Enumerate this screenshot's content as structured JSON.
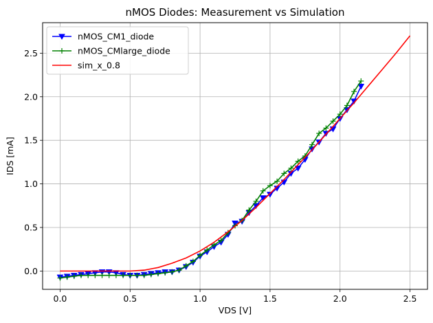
{
  "chart_data": {
    "type": "line",
    "title": "nMOS Diodes: Measurement vs Simulation",
    "xlabel": "VDS [V]",
    "ylabel": "IDS [mA]",
    "xlim": [
      -0.125,
      2.625
    ],
    "ylim": [
      -0.21,
      2.85
    ],
    "xticks": [
      0.0,
      0.5,
      1.0,
      1.5,
      2.0,
      2.5
    ],
    "xtick_labels": [
      "0.0",
      "0.5",
      "1.0",
      "1.5",
      "2.0",
      "2.5"
    ],
    "yticks": [
      0.0,
      0.5,
      1.0,
      1.5,
      2.0,
      2.5
    ],
    "ytick_labels": [
      "0.0",
      "0.5",
      "1.0",
      "1.5",
      "2.0",
      "2.5"
    ],
    "grid": true,
    "legend_position": "top-left",
    "series": [
      {
        "name": "nMOS_CM1_diode",
        "color": "#0000ff",
        "marker": "triangle-down",
        "x": [
          0.0,
          0.05,
          0.1,
          0.15,
          0.2,
          0.25,
          0.3,
          0.35,
          0.4,
          0.45,
          0.5,
          0.55,
          0.6,
          0.65,
          0.7,
          0.75,
          0.8,
          0.85,
          0.9,
          0.95,
          1.0,
          1.05,
          1.1,
          1.15,
          1.2,
          1.25,
          1.3,
          1.35,
          1.4,
          1.45,
          1.5,
          1.55,
          1.6,
          1.65,
          1.7,
          1.75,
          1.8,
          1.85,
          1.9,
          1.95,
          2.0,
          2.05,
          2.1,
          2.15
        ],
        "y": [
          -0.07,
          -0.06,
          -0.05,
          -0.04,
          -0.03,
          -0.02,
          -0.01,
          -0.01,
          -0.02,
          -0.04,
          -0.05,
          -0.05,
          -0.04,
          -0.03,
          -0.02,
          -0.01,
          -0.01,
          0.01,
          0.05,
          0.1,
          0.17,
          0.22,
          0.28,
          0.33,
          0.42,
          0.55,
          0.57,
          0.67,
          0.75,
          0.84,
          0.88,
          0.95,
          1.02,
          1.12,
          1.18,
          1.28,
          1.4,
          1.48,
          1.58,
          1.63,
          1.75,
          1.85,
          1.95,
          2.12
        ]
      },
      {
        "name": "nMOS_CMlarge_diode",
        "color": "#008000",
        "marker": "plus",
        "x": [
          0.0,
          0.05,
          0.1,
          0.15,
          0.2,
          0.25,
          0.3,
          0.35,
          0.4,
          0.45,
          0.5,
          0.55,
          0.6,
          0.65,
          0.7,
          0.75,
          0.8,
          0.85,
          0.9,
          0.95,
          1.0,
          1.05,
          1.1,
          1.15,
          1.2,
          1.25,
          1.3,
          1.35,
          1.4,
          1.45,
          1.5,
          1.55,
          1.6,
          1.65,
          1.7,
          1.75,
          1.8,
          1.85,
          1.9,
          1.95,
          2.0,
          2.05,
          2.1,
          2.15
        ],
        "y": [
          -0.08,
          -0.07,
          -0.06,
          -0.05,
          -0.05,
          -0.05,
          -0.05,
          -0.05,
          -0.05,
          -0.05,
          -0.05,
          -0.05,
          -0.05,
          -0.04,
          -0.03,
          -0.02,
          -0.01,
          0.01,
          0.06,
          0.11,
          0.18,
          0.24,
          0.3,
          0.35,
          0.44,
          0.52,
          0.58,
          0.7,
          0.8,
          0.92,
          0.98,
          1.03,
          1.12,
          1.18,
          1.26,
          1.32,
          1.45,
          1.58,
          1.64,
          1.72,
          1.8,
          1.9,
          2.06,
          2.18
        ]
      },
      {
        "name": "sim_x_0.8",
        "color": "#ff0000",
        "marker": "none",
        "x": [
          0.0,
          0.1,
          0.2,
          0.3,
          0.4,
          0.5,
          0.6,
          0.7,
          0.8,
          0.9,
          1.0,
          1.1,
          1.2,
          1.3,
          1.4,
          1.5,
          1.6,
          1.7,
          1.8,
          1.9,
          2.0,
          2.1,
          2.2,
          2.3,
          2.4,
          2.5
        ],
        "y": [
          0.0,
          0.0,
          0.0,
          0.0,
          0.0,
          0.0,
          0.01,
          0.04,
          0.09,
          0.15,
          0.23,
          0.33,
          0.45,
          0.58,
          0.73,
          0.89,
          1.05,
          1.22,
          1.39,
          1.57,
          1.75,
          1.93,
          2.12,
          2.31,
          2.5,
          2.7
        ]
      }
    ]
  }
}
